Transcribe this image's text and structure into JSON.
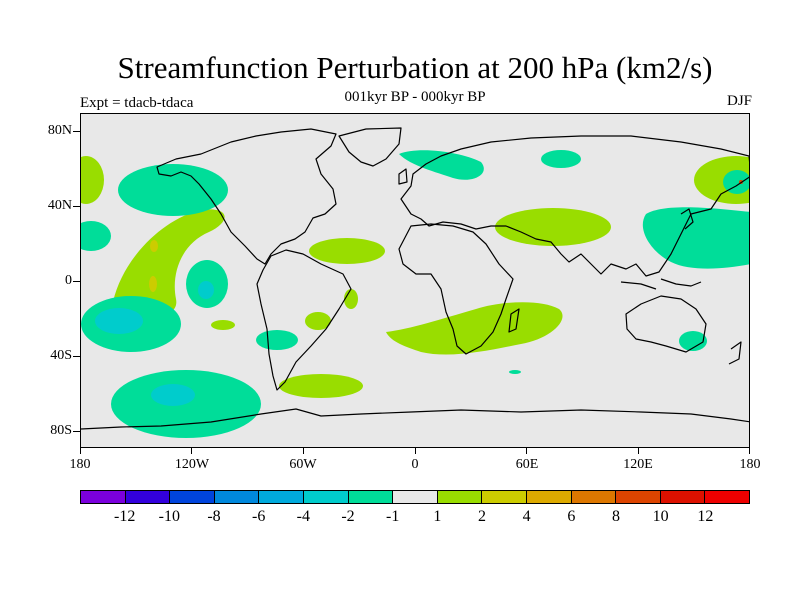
{
  "title": "Streamfunction Perturbation at 200 hPa (km2/s)",
  "subtitle": "001kyr BP - 000kyr BP",
  "left_label": "Expt = tdacb-tdaca",
  "right_label": "DJF",
  "axes": {
    "y_ticks": [
      "80N",
      "40N",
      "0",
      "40S",
      "80S"
    ],
    "x_ticks": [
      "180",
      "120W",
      "60W",
      "0",
      "60E",
      "120E",
      "180"
    ]
  },
  "colors": {
    "background": "#e8e8e8",
    "pos_1_2": "#99dd00",
    "neg_2_1": "#00dd99",
    "neg_4_2": "#00cccc",
    "pos_2_4": "#cccc00",
    "pos_8_10": "#dd4400"
  },
  "colorbar": {
    "labels": [
      "-12",
      "-10",
      "-8",
      "-6",
      "-4",
      "-2",
      "-1",
      "1",
      "2",
      "4",
      "6",
      "8",
      "10",
      "12"
    ],
    "colors": [
      "#7b00dd",
      "#3300dd",
      "#0044dd",
      "#0088dd",
      "#00aadd",
      "#00cccc",
      "#00dd99",
      "#e8e8e8",
      "#99dd00",
      "#cccc00",
      "#ddaa00",
      "#dd7700",
      "#dd4400",
      "#dd1100",
      "#ee0000"
    ]
  }
}
